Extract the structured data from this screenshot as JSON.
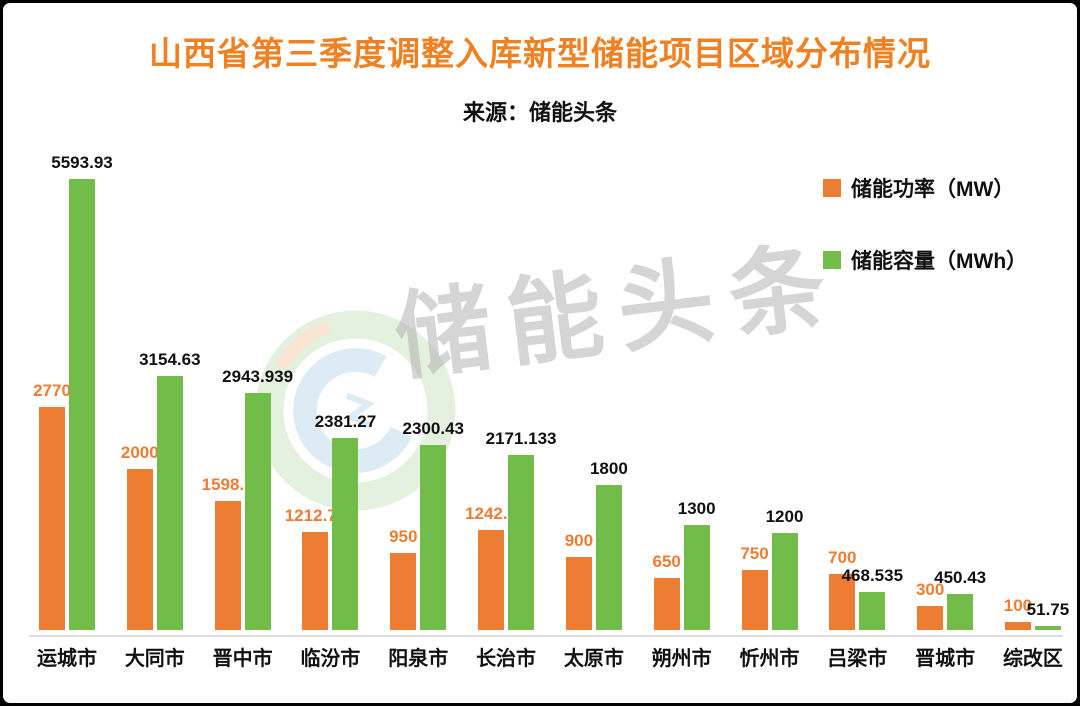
{
  "frame": {
    "background": "#ffffff",
    "border_color": "#000000"
  },
  "header": {
    "title": "山西省第三季度调整入库新型储能项目区域分布情况",
    "title_color": "#F08122",
    "source_label": "来源：储能头条"
  },
  "watermark": {
    "text": "储能头条",
    "logo": "energy-storage-swirl-logo",
    "text_color": "#b3b3b3"
  },
  "chart_data": {
    "type": "bar",
    "title": "山西省第三季度调整入库新型储能项目区域分布情况",
    "subtitle": "来源：储能头条",
    "categories": [
      "运城市",
      "大同市",
      "晋中市",
      "临汾市",
      "阳泉市",
      "长治市",
      "太原市",
      "朔州市",
      "忻州市",
      "吕梁市",
      "晋城市",
      "综改区"
    ],
    "series": [
      {
        "name": "储能功率（MW）",
        "color": "#ED7D33",
        "label_color": "#ED7D33",
        "values": [
          2770,
          2000,
          1598.7,
          1212.76,
          950,
          1242.5,
          900,
          650,
          750,
          700,
          300,
          100
        ]
      },
      {
        "name": "储能容量（MWh）",
        "color": "#72BD4A",
        "label_color": "#111111",
        "values": [
          5593.93,
          3154.63,
          2943.939,
          2381.27,
          2300.43,
          2171.133,
          1800,
          1300,
          1200,
          468.535,
          450.43,
          51.75
        ]
      }
    ],
    "xlabel": "",
    "ylabel": "",
    "ylim": [
      0,
      5600
    ],
    "grid": false,
    "legend_position": "top-right",
    "value_labels": true,
    "axis_line_color": "#DCDCDC"
  }
}
